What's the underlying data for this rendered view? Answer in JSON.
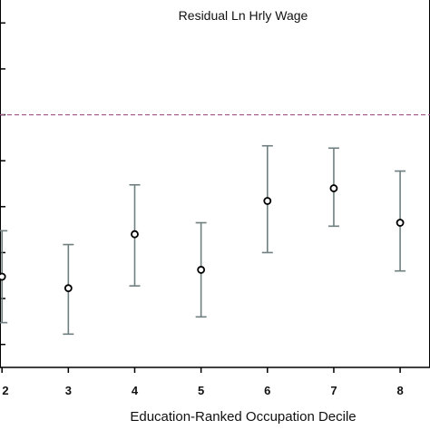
{
  "chart_data": {
    "type": "scatter",
    "title": "Residual Ln Hrly Wage",
    "xlabel": "Education-Ranked Occupation Decile",
    "ylabel": "",
    "categories": [
      "2",
      "3",
      "4",
      "5",
      "6",
      "7",
      "8"
    ],
    "x": [
      2,
      3,
      4,
      5,
      6,
      7,
      8
    ],
    "xlim": [
      1.97,
      8.45
    ],
    "ylim": [
      -0.22,
      0.1
    ],
    "reference_line": 0.0,
    "series": [
      {
        "point": [
          -0.141,
          -0.151,
          -0.104,
          -0.135,
          -0.075,
          -0.064,
          -0.094
        ],
        "ci_low": [
          -0.181,
          -0.191,
          -0.149,
          -0.176,
          -0.12,
          -0.097,
          -0.136
        ],
        "ci_high": [
          -0.101,
          -0.113,
          -0.061,
          -0.094,
          -0.027,
          -0.029,
          -0.049
        ]
      }
    ],
    "grid": false,
    "colors": {
      "point": "#000000",
      "ci": "#6f7f80",
      "reference": "#a0528b",
      "axis": "#000000"
    }
  }
}
